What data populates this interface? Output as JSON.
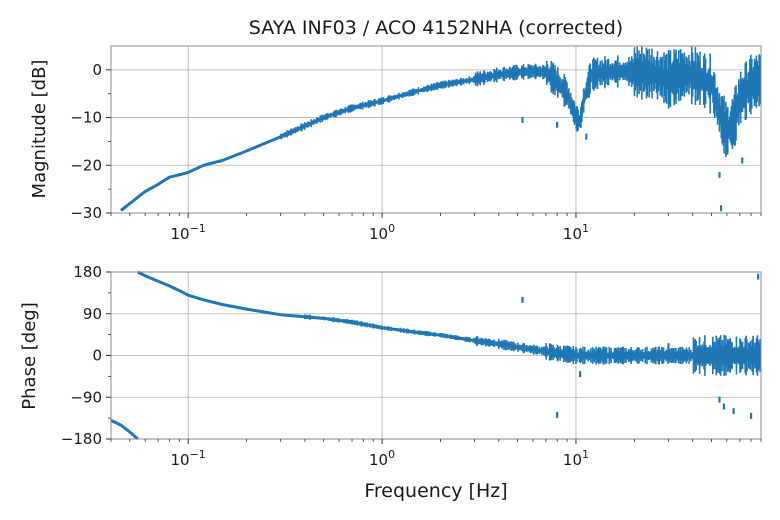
{
  "chart_data": {
    "type": "line",
    "title": "SAYA INF03 / ACO 4152NHA (corrected)",
    "xlabel": "Frequency [Hz]",
    "xscale": "log",
    "xlim": [
      0.04,
      90
    ],
    "x_ticks": [
      {
        "value": 0.1,
        "base": "10",
        "exp": "−1"
      },
      {
        "value": 1,
        "base": "10",
        "exp": "0"
      },
      {
        "value": 10,
        "base": "10",
        "exp": "1"
      }
    ],
    "series_color": "#1f77b4",
    "panels": [
      {
        "name": "magnitude",
        "ylabel": "Magnitude [dB]",
        "ylim": [
          -30,
          5
        ],
        "y_ticks": [
          {
            "value": 0,
            "label": "0"
          },
          {
            "value": -10,
            "label": "−10"
          },
          {
            "value": -20,
            "label": "−20"
          },
          {
            "value": -30,
            "label": "−30"
          }
        ],
        "series": [
          {
            "name": "magnitude",
            "x": [
              0.045,
              0.05,
              0.06,
              0.07,
              0.08,
              0.09,
              0.1,
              0.12,
              0.15,
              0.2,
              0.3,
              0.5,
              0.7,
              1.0,
              1.5,
              2,
              3,
              4,
              5,
              6,
              7,
              8,
              9,
              10,
              10.5,
              11,
              12,
              14,
              17,
              20,
              25,
              30,
              35,
              40,
              50,
              55,
              60,
              65,
              70,
              80,
              90
            ],
            "y": [
              -29.5,
              -28,
              -25.5,
              -24,
              -22.5,
              -22,
              -21.5,
              -20,
              -19,
              -17,
              -14,
              -10,
              -8,
              -6.5,
              -4.5,
              -3.2,
              -2,
              -1,
              -0.5,
              -0.3,
              -0.5,
              -2.5,
              -5,
              -10,
              -11,
              -6,
              -1,
              -0.5,
              -0.3,
              -0.4,
              -0.8,
              -2,
              -1,
              -1,
              -3,
              -9,
              -13,
              -11,
              -6,
              -3,
              -2
            ]
          }
        ],
        "annotations": [
          {
            "x": 5.3,
            "y": -10.5
          },
          {
            "x": 8.0,
            "y": -11.5
          },
          {
            "x": 11.3,
            "y": -14
          },
          {
            "x": 55,
            "y": -22
          },
          {
            "x": 56,
            "y": -29
          },
          {
            "x": 72,
            "y": -19
          },
          {
            "x": 85,
            "y": -5
          }
        ]
      },
      {
        "name": "phase",
        "ylabel": "Phase [deg]",
        "ylim": [
          -180,
          180
        ],
        "y_ticks": [
          {
            "value": 180,
            "label": "180"
          },
          {
            "value": 90,
            "label": "90"
          },
          {
            "value": 0,
            "label": "0"
          },
          {
            "value": -90,
            "label": "−90"
          },
          {
            "value": -180,
            "label": "−180"
          }
        ],
        "series": [
          {
            "name": "phase-wrapped",
            "x": [
              0.04,
              0.045,
              0.05,
              0.055
            ],
            "y": [
              -140,
              -150,
              -165,
              -180
            ]
          },
          {
            "name": "phase",
            "x": [
              0.055,
              0.06,
              0.07,
              0.08,
              0.09,
              0.1,
              0.12,
              0.15,
              0.2,
              0.3,
              0.5,
              0.7,
              1.0,
              1.5,
              2,
              3,
              4,
              5,
              6,
              7,
              8,
              9,
              10,
              12,
              15,
              20,
              30,
              40,
              50,
              60,
              70,
              80,
              90
            ],
            "y": [
              180,
              172,
              160,
              150,
              140,
              130,
              120,
              110,
              100,
              88,
              80,
              72,
              60,
              50,
              44,
              32,
              25,
              18,
              13,
              9,
              5,
              3,
              0,
              0,
              0,
              0,
              0,
              0,
              0,
              0,
              0,
              0,
              0
            ]
          }
        ],
        "annotations": [
          {
            "x": 5.3,
            "y": 120
          },
          {
            "x": 8.0,
            "y": -128
          },
          {
            "x": 10.5,
            "y": -40
          },
          {
            "x": 30,
            "y": 20
          },
          {
            "x": 55,
            "y": -95
          },
          {
            "x": 58,
            "y": -110
          },
          {
            "x": 65,
            "y": -120
          },
          {
            "x": 80,
            "y": -130
          },
          {
            "x": 87,
            "y": 170
          }
        ]
      }
    ]
  }
}
